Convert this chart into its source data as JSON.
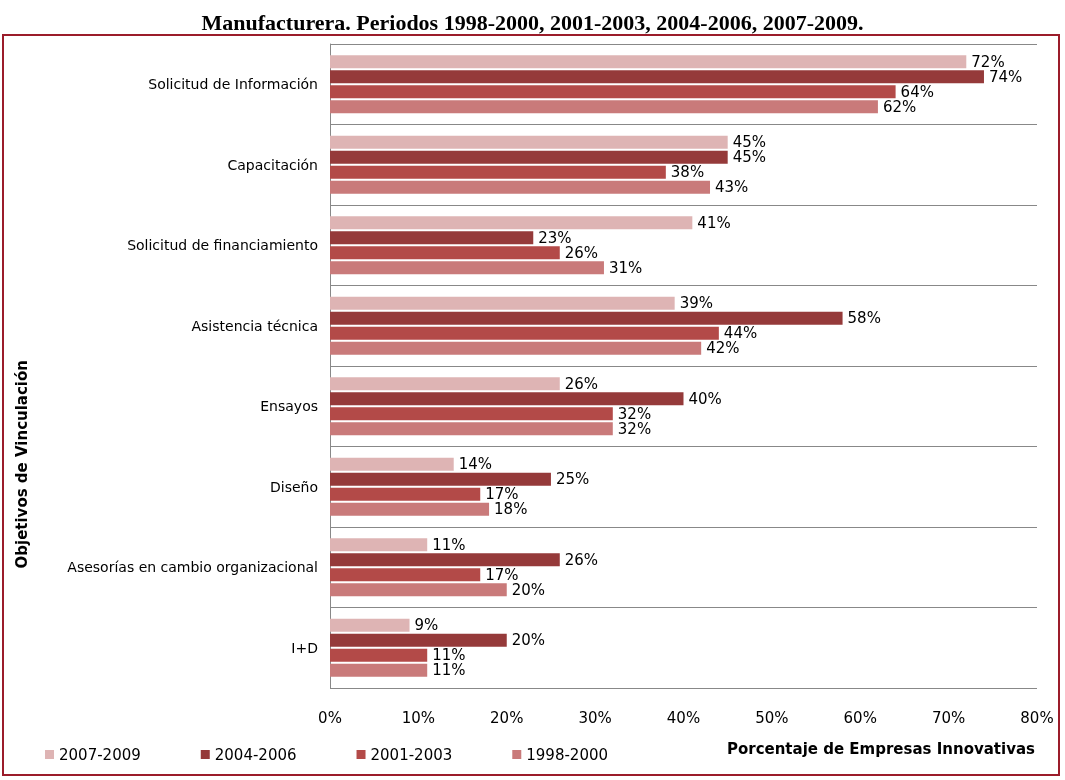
{
  "chart_data": {
    "type": "bar",
    "orientation": "horizontal",
    "title": "Manufacturera. Periodos 1998-2000, 2001-2003, 2004-2006, 2007-2009.",
    "xlabel": "Porcentaje de Empresas Innovativas",
    "ylabel": "Objetivos de Vinculación",
    "categories": [
      "Solicitud de Información",
      "Capacitación",
      "Solicitud de financiamiento",
      "Asistencia técnica",
      "Ensayos",
      "Diseño",
      "Asesorías en cambio organizacional",
      "I+D"
    ],
    "series": [
      {
        "name": "2007-2009",
        "color": "#deb4b4",
        "values": [
          72,
          45,
          41,
          39,
          26,
          14,
          11,
          9
        ],
        "value_labels": [
          "72%",
          "45%",
          "41%",
          "39%",
          "26%",
          "14%",
          "11%",
          "9%"
        ]
      },
      {
        "name": "2004-2006",
        "color": "#953a3a",
        "values": [
          74,
          45,
          23,
          58,
          40,
          25,
          26,
          20
        ],
        "value_labels": [
          "74%",
          "45%",
          "23%",
          "58%",
          "40%",
          "25%",
          "26%",
          "20%"
        ]
      },
      {
        "name": "2001-2003",
        "color": "#b34a48",
        "values": [
          64,
          38,
          26,
          44,
          32,
          17,
          17,
          11
        ],
        "value_labels": [
          "64%",
          "38%",
          "26%",
          "44%",
          "32%",
          "17%",
          "17%",
          "11%"
        ]
      },
      {
        "name": "1998-2000",
        "color": "#c97a7a",
        "values": [
          62,
          43,
          31,
          42,
          32,
          18,
          20,
          11
        ],
        "value_labels": [
          "62%",
          "43%",
          "31%",
          "42%",
          "32%",
          "18%",
          "20%",
          "11%"
        ]
      }
    ],
    "xlim": [
      0,
      80
    ],
    "xticks": [
      {
        "value": 0,
        "label": "0%"
      },
      {
        "value": 10,
        "label": "10%"
      },
      {
        "value": 20,
        "label": "20%"
      },
      {
        "value": 30,
        "label": "30%"
      },
      {
        "value": 40,
        "label": "40%"
      },
      {
        "value": 50,
        "label": "50%"
      },
      {
        "value": 60,
        "label": "60%"
      },
      {
        "value": 70,
        "label": "70%"
      },
      {
        "value": 80,
        "label": "80%"
      }
    ],
    "grid": "y",
    "legend": "bottom left"
  }
}
